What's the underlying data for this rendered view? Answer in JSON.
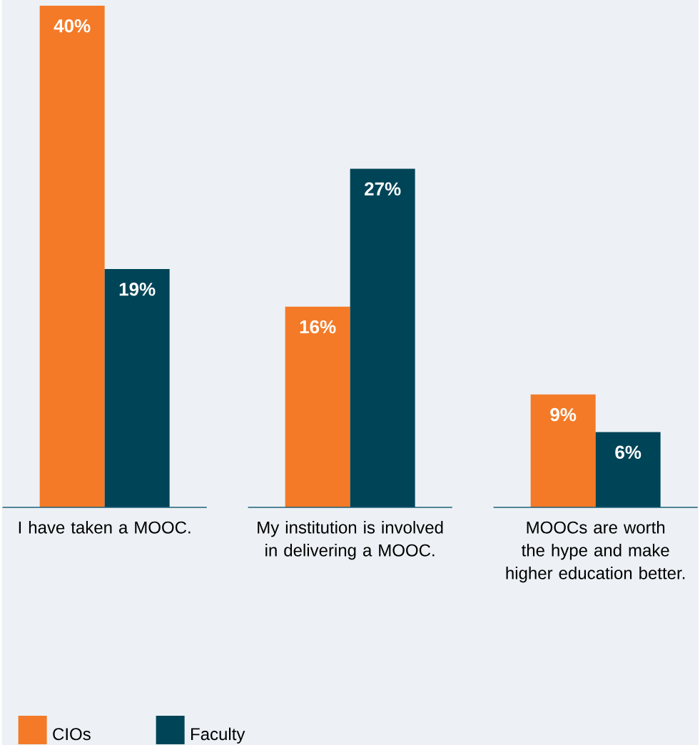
{
  "chart_data": {
    "type": "bar",
    "categories": [
      "I have taken a MOOC.",
      "My institution is involved in delivering a MOOC.",
      "MOOCs are worth the hype and make higher education better."
    ],
    "series": [
      {
        "name": "CIOs",
        "color": "#f47a27",
        "values": [
          40,
          16,
          9
        ],
        "value_labels": [
          "40%",
          "16%",
          "9%"
        ]
      },
      {
        "name": "Faculty",
        "color": "#004457",
        "values": [
          19,
          27,
          6
        ],
        "value_labels": [
          "19%",
          "27%",
          "6%"
        ]
      }
    ],
    "legend": "bottom left"
  }
}
